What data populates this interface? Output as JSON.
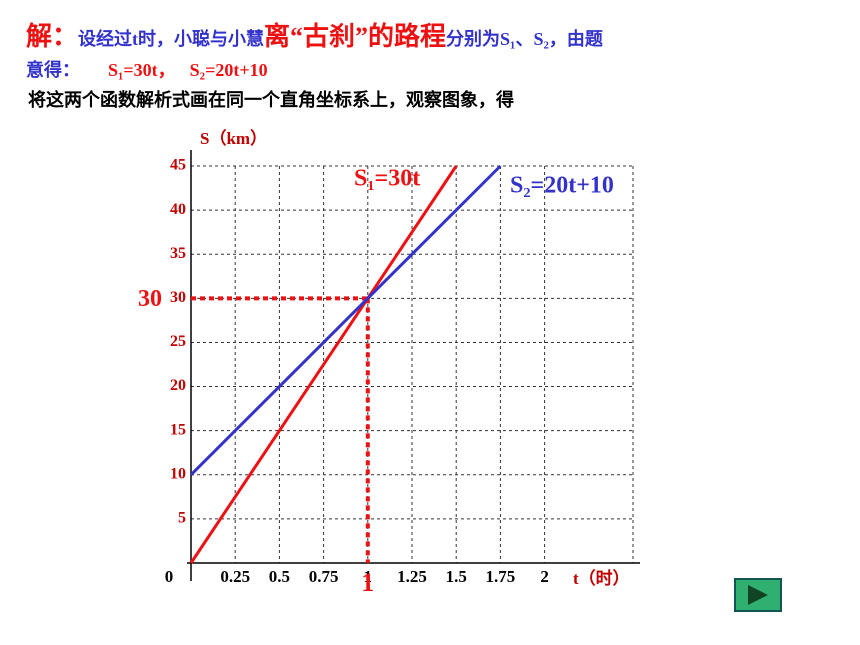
{
  "header": {
    "line1": [
      "解：",
      "设经过t时，小聪与小慧",
      "离“古刹”的路程",
      "分别为S₁、S₂，由题"
    ],
    "line2": [
      "意得：",
      "S₁=30t，",
      "S₂=20t+10"
    ],
    "line3": "将这两个函数解析式画在同一个直角坐标系上，观察图象，得"
  },
  "chart_data": {
    "type": "line",
    "y_label": "S（km）",
    "x_label": "t（时）",
    "xlim": [
      0,
      2.5
    ],
    "ylim": [
      0,
      45
    ],
    "xticks": [
      0,
      0.25,
      0.5,
      0.75,
      1,
      1.25,
      1.5,
      1.75,
      2
    ],
    "yticks": [
      5,
      10,
      15,
      20,
      25,
      30,
      35,
      40,
      45
    ],
    "grid": true,
    "series": [
      {
        "name": "S₁=30t",
        "color": "#ee1111",
        "x": [
          0,
          1.5
        ],
        "values": [
          0,
          45
        ]
      },
      {
        "name": "S₂=20t+10",
        "color": "#3333cc",
        "x": [
          0,
          1.75
        ],
        "values": [
          10,
          45
        ]
      }
    ],
    "highlight": {
      "x": 1,
      "y": 30,
      "color": "#ee1111"
    }
  }
}
